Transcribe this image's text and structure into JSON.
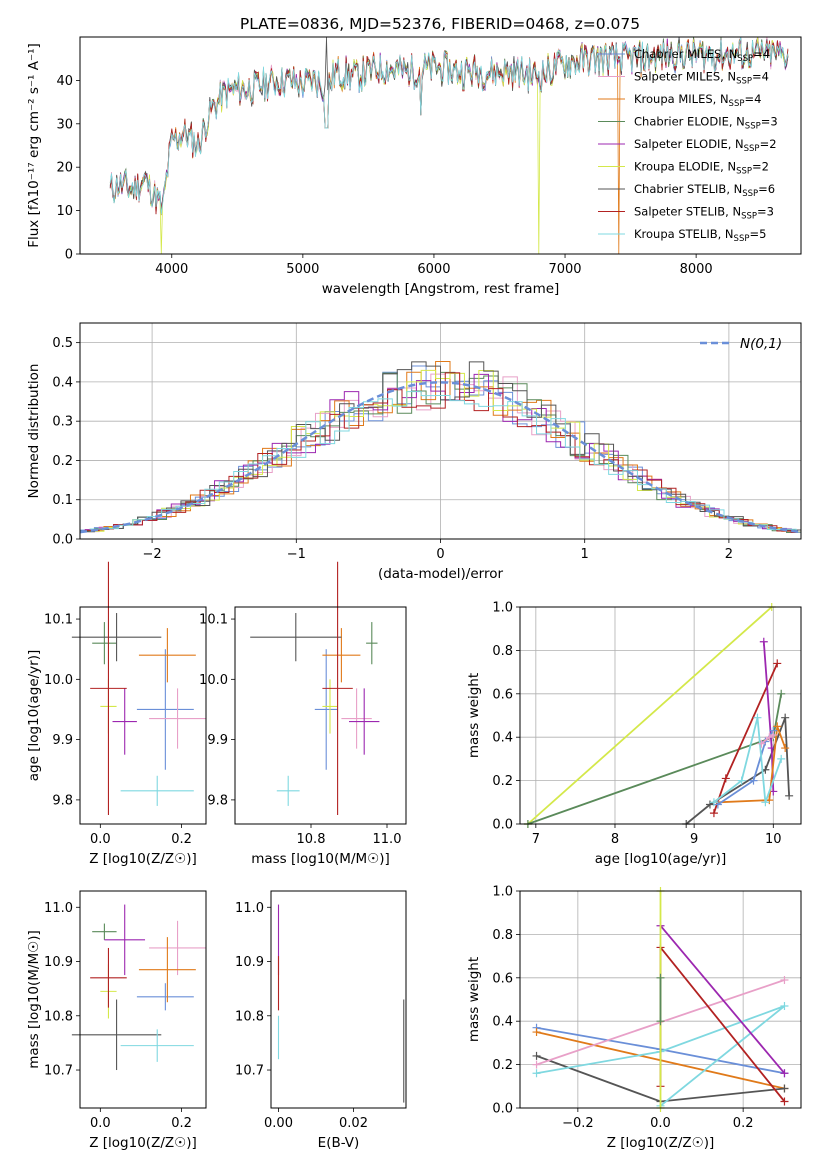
{
  "figure_title": "PLATE=0836, MJD=52376, FIBERID=0468, z=0.075",
  "chart_data": [
    {
      "type": "line",
      "id": "spectrum",
      "xlabel": "wavelength [Angstrom, rest frame]",
      "ylabel": "Flux [fλ10⁻¹⁷ erg cm⁻² s⁻¹ A⁻¹]",
      "xlim": [
        3300,
        8800
      ],
      "ylim": [
        0,
        50
      ],
      "xticks": [
        4000,
        5000,
        6000,
        7000,
        8000
      ],
      "yticks": [
        0,
        10,
        20,
        30,
        40
      ],
      "legend_position": "right",
      "anchors_x": [
        3530,
        3600,
        3700,
        3800,
        3900,
        3930,
        3970,
        4000,
        4100,
        4200,
        4300,
        4400,
        4500,
        4600,
        4700,
        4800,
        4900,
        5000,
        5100,
        5180,
        5250,
        5400,
        5600,
        5800,
        6000,
        6200,
        6400,
        6600,
        6800,
        7000,
        7200,
        7400,
        7600,
        7800,
        8000,
        8200,
        8400,
        8700
      ],
      "anchors_y": [
        15,
        16,
        15,
        17,
        12,
        10,
        20,
        26,
        28,
        25,
        33,
        37,
        38,
        38,
        39,
        40,
        40,
        39,
        40,
        38,
        42,
        41,
        43,
        42,
        43,
        42,
        42,
        42,
        41,
        44,
        45,
        45,
        45,
        46,
        46,
        46,
        46,
        46
      ],
      "series": [
        {
          "name": "Chabrier MILES, N_SSP=4",
          "label_main": "Chabrier MILES, N",
          "label_sub": "SSP",
          "label_tail": "=4",
          "color": "#6a8fd8"
        },
        {
          "name": "Salpeter MILES, N_SSP=4",
          "label_main": "Salpeter MILES, N",
          "label_sub": "SSP",
          "label_tail": "=4",
          "color": "#e8a0c8"
        },
        {
          "name": "Kroupa MILES, N_SSP=4",
          "label_main": "Kroupa MILES, N",
          "label_sub": "SSP",
          "label_tail": "=4",
          "color": "#e07a1a"
        },
        {
          "name": "Chabrier ELODIE, N_SSP=3",
          "label_main": "Chabrier ELODIE, N",
          "label_sub": "SSP",
          "label_tail": "=3",
          "color": "#5a8a5a"
        },
        {
          "name": "Salpeter ELODIE, N_SSP=2",
          "label_main": "Salpeter ELODIE, N",
          "label_sub": "SSP",
          "label_tail": "=2",
          "color": "#9c27b0"
        },
        {
          "name": "Kroupa ELODIE, N_SSP=2",
          "label_main": "Kroupa ELODIE, N",
          "label_sub": "SSP",
          "label_tail": "=2",
          "color": "#d4e84a"
        },
        {
          "name": "Chabrier STELIB, N_SSP=6",
          "label_main": "Chabrier STELIB, N",
          "label_sub": "SSP",
          "label_tail": "=6",
          "color": "#555555"
        },
        {
          "name": "Salpeter STELIB, N_SSP=3",
          "label_main": "Salpeter STELIB, N",
          "label_sub": "SSP",
          "label_tail": "=3",
          "color": "#b22222"
        },
        {
          "name": "Kroupa STELIB, N_SSP=5",
          "label_main": "Kroupa STELIB, N",
          "label_sub": "SSP",
          "label_tail": "=5",
          "color": "#7fd8e0"
        }
      ]
    },
    {
      "type": "histogram",
      "id": "residuals",
      "xlabel": "(data-model)/error",
      "ylabel": "Normed distribution",
      "xlim": [
        -2.5,
        2.5
      ],
      "ylim": [
        0,
        0.55
      ],
      "xticks": [
        -2,
        -1,
        0,
        1,
        2
      ],
      "yticks": [
        0.0,
        0.1,
        0.2,
        0.3,
        0.4,
        0.5
      ],
      "grid": true,
      "legend": "N(0,1)",
      "legend_color": "#6a8fd8",
      "legend_position": "top-right"
    },
    {
      "type": "scatter",
      "id": "age_vs_Z",
      "xlabel": "Z [log10(Z/Z☉)]",
      "ylabel": "age [log10(age/yr)]",
      "xlim": [
        -0.05,
        0.26
      ],
      "ylim": [
        9.76,
        10.12
      ],
      "xticks": [
        0.0,
        0.2
      ],
      "yticks": [
        9.8,
        9.9,
        10.0,
        10.1
      ],
      "points": [
        {
          "c": 0,
          "x": 0.16,
          "y": 9.95,
          "ex": 0.07,
          "ey": 0.1
        },
        {
          "c": 1,
          "x": 0.19,
          "y": 9.935,
          "ex": 0.07,
          "ey": 0.05
        },
        {
          "c": 2,
          "x": 0.165,
          "y": 10.04,
          "ex": 0.07,
          "ey": 0.045
        },
        {
          "c": 3,
          "x": 0.01,
          "y": 10.06,
          "ex": 0.03,
          "ey": 0.035
        },
        {
          "c": 4,
          "x": 0.06,
          "y": 9.93,
          "ex": 0.03,
          "ey": 0.055
        },
        {
          "c": 5,
          "x": 0.02,
          "y": 9.955,
          "ex": 0.02,
          "ey": 0.045
        },
        {
          "c": 6,
          "x": 0.04,
          "y": 10.07,
          "ex": 0.11,
          "ey": 0.04
        },
        {
          "c": 7,
          "x": 0.02,
          "y": 9.985,
          "ex": 0.045,
          "ey": 0.21
        },
        {
          "c": 8,
          "x": 0.14,
          "y": 9.815,
          "ex": 0.09,
          "ey": 0.025
        }
      ]
    },
    {
      "type": "scatter",
      "id": "age_vs_mass",
      "xlabel": "mass [log10(M/M☉)]",
      "ylabel": "",
      "xlim": [
        10.6,
        11.05
      ],
      "ylim": [
        9.76,
        10.12
      ],
      "xticks": [
        10.8,
        11.0
      ],
      "yticks": [
        9.8,
        9.9,
        10.0,
        10.1
      ],
      "points": [
        {
          "c": 0,
          "x": 10.84,
          "y": 9.95,
          "ex": 0.03,
          "ey": 0.1
        },
        {
          "c": 1,
          "x": 10.92,
          "y": 9.935,
          "ex": 0.04,
          "ey": 0.05
        },
        {
          "c": 2,
          "x": 10.88,
          "y": 10.04,
          "ex": 0.05,
          "ey": 0.045
        },
        {
          "c": 3,
          "x": 10.96,
          "y": 10.06,
          "ex": 0.015,
          "ey": 0.035
        },
        {
          "c": 4,
          "x": 10.94,
          "y": 9.93,
          "ex": 0.04,
          "ey": 0.055
        },
        {
          "c": 5,
          "x": 10.85,
          "y": 9.955,
          "ex": 0.02,
          "ey": 0.045
        },
        {
          "c": 6,
          "x": 10.76,
          "y": 10.07,
          "ex": 0.12,
          "ey": 0.04
        },
        {
          "c": 7,
          "x": 10.87,
          "y": 9.985,
          "ex": 0.04,
          "ey": 0.21
        },
        {
          "c": 8,
          "x": 10.74,
          "y": 9.815,
          "ex": 0.03,
          "ey": 0.025
        }
      ]
    },
    {
      "type": "line",
      "id": "mass_weight_vs_age",
      "xlabel": "age [log10(age/yr)]",
      "ylabel": "mass weight",
      "xlim": [
        6.8,
        10.35
      ],
      "ylim": [
        0,
        1.0
      ],
      "xticks": [
        7,
        8,
        9,
        10
      ],
      "yticks": [
        0.0,
        0.2,
        0.4,
        0.6,
        0.8,
        1.0
      ],
      "grid": true,
      "series": [
        {
          "c": 5,
          "x": [
            6.9,
            9.98
          ],
          "y": [
            0.0,
            1.0
          ]
        },
        {
          "c": 3,
          "x": [
            6.9,
            10.0,
            10.1
          ],
          "y": [
            0.0,
            0.4,
            0.6
          ]
        },
        {
          "c": 6,
          "x": [
            8.9,
            9.2,
            9.9,
            10.15,
            10.2
          ],
          "y": [
            0.0,
            0.09,
            0.25,
            0.49,
            0.13
          ]
        },
        {
          "c": 7,
          "x": [
            9.25,
            9.4,
            10.05
          ],
          "y": [
            0.05,
            0.21,
            0.74
          ]
        },
        {
          "c": 4,
          "x": [
            9.88,
            9.98,
            10.0
          ],
          "y": [
            0.84,
            0.35,
            0.15
          ]
        },
        {
          "c": 2,
          "x": [
            9.3,
            9.95,
            10.05,
            10.15
          ],
          "y": [
            0.1,
            0.11,
            0.45,
            0.35
          ]
        },
        {
          "c": 0,
          "x": [
            9.3,
            9.75,
            9.9,
            10.0
          ],
          "y": [
            0.09,
            0.2,
            0.38,
            0.43
          ]
        },
        {
          "c": 8,
          "x": [
            9.25,
            9.6,
            9.8,
            9.9,
            10.1
          ],
          "y": [
            0.1,
            0.2,
            0.49,
            0.1,
            0.3
          ]
        },
        {
          "c": 1,
          "x": [
            9.85,
            9.95,
            10.0
          ],
          "y": [
            0.37,
            0.4,
            0.41
          ]
        }
      ]
    },
    {
      "type": "scatter",
      "id": "mass_vs_Z",
      "xlabel": "Z [log10(Z/Z☉)]",
      "ylabel": "mass [log10(M/M☉)]",
      "xlim": [
        -0.05,
        0.26
      ],
      "ylim": [
        10.63,
        11.03
      ],
      "xticks": [
        0.0,
        0.2
      ],
      "yticks": [
        10.7,
        10.8,
        10.9,
        11.0
      ],
      "points": [
        {
          "c": 0,
          "x": 0.16,
          "y": 10.835,
          "ex": 0.07,
          "ey": 0.025
        },
        {
          "c": 1,
          "x": 0.19,
          "y": 10.925,
          "ex": 0.07,
          "ey": 0.05
        },
        {
          "c": 2,
          "x": 0.165,
          "y": 10.885,
          "ex": 0.07,
          "ey": 0.06
        },
        {
          "c": 3,
          "x": 0.01,
          "y": 10.955,
          "ex": 0.03,
          "ey": 0.015
        },
        {
          "c": 4,
          "x": 0.06,
          "y": 10.94,
          "ex": 0.05,
          "ey": 0.065
        },
        {
          "c": 5,
          "x": 0.02,
          "y": 10.845,
          "ex": 0.02,
          "ey": 0.05
        },
        {
          "c": 6,
          "x": 0.04,
          "y": 10.765,
          "ex": 0.11,
          "ey": 0.065
        },
        {
          "c": 7,
          "x": 0.02,
          "y": 10.87,
          "ex": 0.045,
          "ey": 0.055
        },
        {
          "c": 8,
          "x": 0.14,
          "y": 10.745,
          "ex": 0.09,
          "ey": 0.03
        }
      ]
    },
    {
      "type": "scatter",
      "id": "mass_vs_EBV",
      "xlabel": "E(B-V)",
      "ylabel": "",
      "xlim": [
        -0.002,
        0.034
      ],
      "ylim": [
        10.63,
        11.03
      ],
      "xticks": [
        0.0,
        0.02
      ],
      "yticks": [
        10.7,
        10.8,
        10.9,
        11.0
      ],
      "points": [
        {
          "c": 4,
          "x": 0.0,
          "y": 10.94,
          "ex": 0,
          "ey": 0.065
        },
        {
          "c": 7,
          "x": 0.0,
          "y": 10.86,
          "ex": 0,
          "ey": 0.05
        },
        {
          "c": 8,
          "x": 0.0,
          "y": 10.76,
          "ex": 0,
          "ey": 0.04
        },
        {
          "c": 6,
          "x": 0.0334,
          "y": 10.735,
          "ex": 0,
          "ey": 0.095
        }
      ]
    },
    {
      "type": "line",
      "id": "mass_weight_vs_Z",
      "xlabel": "Z [log10(Z/Z☉)]",
      "ylabel": "mass weight",
      "xlim": [
        -0.34,
        0.34
      ],
      "ylim": [
        0,
        1.0
      ],
      "xticks": [
        -0.2,
        0.0,
        0.2
      ],
      "yticks": [
        0.0,
        0.2,
        0.4,
        0.6,
        0.8,
        1.0
      ],
      "grid": true,
      "series": [
        {
          "c": 0,
          "x": [
            -0.3,
            0.0,
            0.3
          ],
          "y": [
            0.37,
            0.27,
            0.16
          ]
        },
        {
          "c": 2,
          "x": [
            -0.3,
            0.3
          ],
          "y": [
            0.35,
            0.09
          ]
        },
        {
          "c": 6,
          "x": [
            -0.3,
            0.0,
            0.3
          ],
          "y": [
            0.24,
            0.03,
            0.09
          ]
        },
        {
          "c": 8,
          "x": [
            -0.3,
            0.0,
            0.3,
            0.0
          ],
          "y": [
            0.16,
            0.26,
            0.47,
            0.01
          ]
        },
        {
          "c": 1,
          "x": [
            -0.3,
            0.3
          ],
          "y": [
            0.2,
            0.59
          ]
        },
        {
          "c": 4,
          "x": [
            0.0,
            0.3
          ],
          "y": [
            0.84,
            0.16
          ]
        },
        {
          "c": 7,
          "x": [
            0.0,
            0.0,
            0.3
          ],
          "y": [
            0.1,
            0.74,
            0.03
          ]
        },
        {
          "c": 5,
          "x": [
            0.0,
            0.0
          ],
          "y": [
            0.0,
            1.0
          ]
        },
        {
          "c": 3,
          "x": [
            0.0,
            0.0
          ],
          "y": [
            0.4,
            0.6
          ]
        }
      ]
    }
  ]
}
